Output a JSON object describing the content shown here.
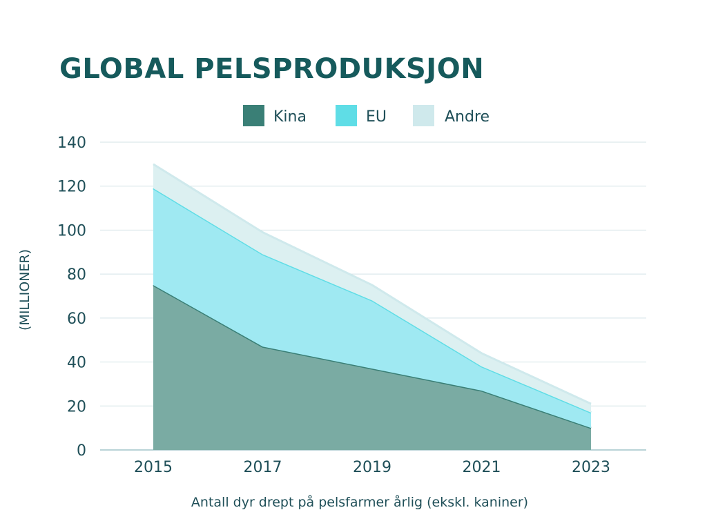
{
  "chart_data": {
    "type": "area",
    "stacked": true,
    "title": "GLOBAL PELSPRODUKSJON",
    "xlabel": "Antall dyr drept på pelsfarmer årlig (ekskl. kaniner)",
    "ylabel": "(MILLIONER)",
    "categories": [
      "2015",
      "2017",
      "2019",
      "2021",
      "2023"
    ],
    "ylim": [
      0,
      140
    ],
    "yticks": [
      0,
      20,
      40,
      60,
      80,
      100,
      120,
      140
    ],
    "grid": true,
    "legend_position": "top-center",
    "series": [
      {
        "name": "Kina",
        "values": [
          75,
          47,
          37,
          27,
          10
        ],
        "color": "#3a7f76",
        "fill": "#7aaba3"
      },
      {
        "name": "EU",
        "values": [
          44,
          42,
          31,
          11,
          7
        ],
        "color": "#5fdde6",
        "fill": "#9fe9f2"
      },
      {
        "name": "Andre",
        "values": [
          11,
          10,
          7,
          6,
          4
        ],
        "color": "#cfe9ec",
        "fill": "#dcf0f1"
      }
    ]
  }
}
